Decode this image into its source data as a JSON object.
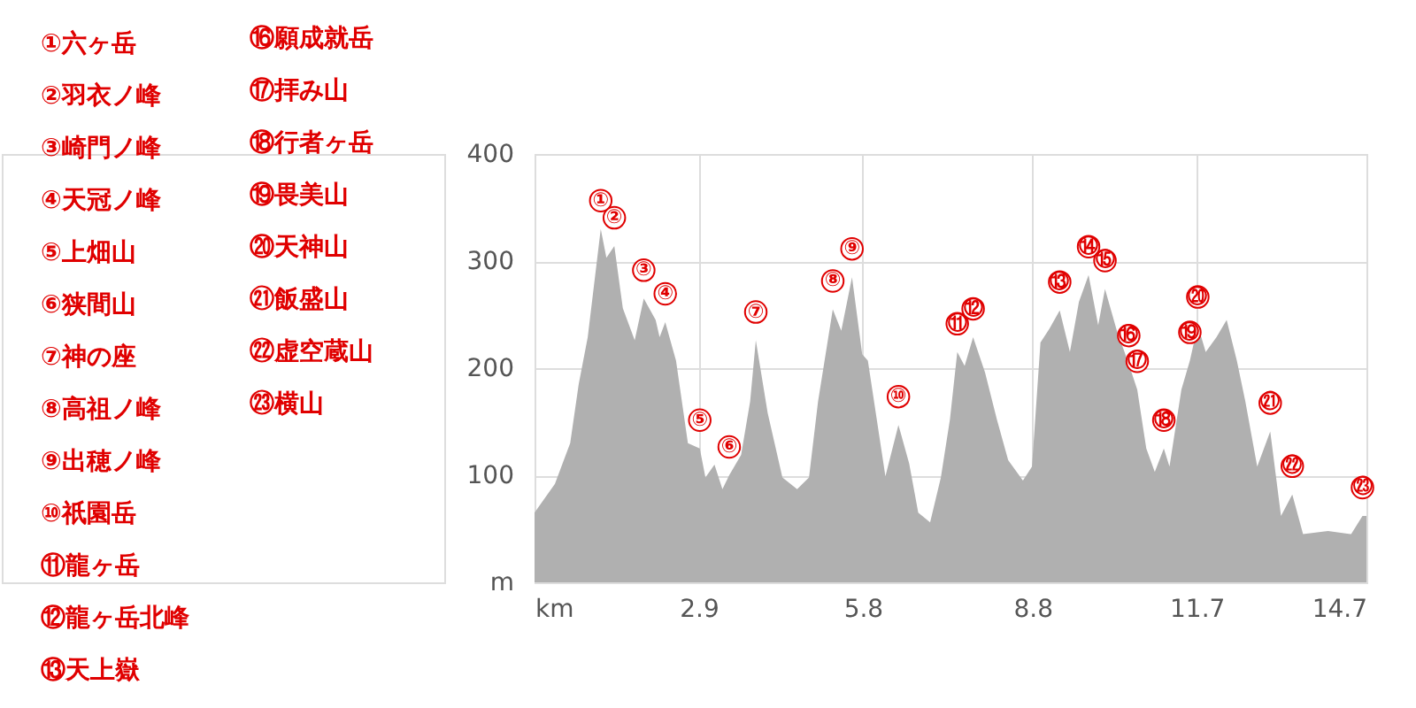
{
  "chart_data": {
    "type": "area",
    "x": [
      0,
      0.36,
      0.63,
      0.78,
      0.94,
      1.17,
      1.27,
      1.41,
      1.56,
      1.77,
      1.93,
      2.14,
      2.21,
      2.31,
      2.5,
      2.71,
      2.92,
      3.02,
      3.18,
      3.32,
      3.44,
      3.65,
      3.81,
      3.91,
      4.12,
      4.38,
      4.64,
      4.85,
      5.01,
      5.27,
      5.42,
      5.61,
      5.79,
      5.89,
      6.2,
      6.43,
      6.62,
      6.78,
      6.99,
      7.18,
      7.34,
      7.47,
      7.6,
      7.75,
      7.96,
      8.17,
      8.37,
      8.63,
      8.79,
      8.94,
      9.1,
      9.28,
      9.46,
      9.62,
      9.79,
      9.96,
      10.08,
      10.29,
      10.5,
      10.65,
      10.81,
      10.96,
      11.12,
      11.22,
      11.43,
      11.58,
      11.72,
      11.86,
      12.05,
      12.23,
      12.41,
      12.56,
      12.77,
      13.0,
      13.19,
      13.39,
      13.58,
      14.02,
      14.43,
      14.63,
      14.7
    ],
    "series": [
      {
        "color": "#b0b0b0",
        "values": [
          65,
          92,
          130,
          185,
          229,
          330,
          303,
          314,
          256,
          226,
          265,
          245,
          229,
          243,
          207,
          130,
          125,
          98,
          110,
          87,
          100,
          119,
          169,
          226,
          158,
          98,
          87,
          98,
          169,
          255,
          235,
          285,
          213,
          207,
          99,
          147,
          111,
          65,
          56,
          98,
          152,
          215,
          202,
          229,
          196,
          152,
          114,
          95,
          108,
          224,
          237,
          254,
          215,
          262,
          287,
          240,
          274,
          235,
          204,
          180,
          125,
          103,
          125,
          108,
          180,
          207,
          240,
          215,
          229,
          245,
          207,
          169,
          108,
          141,
          62,
          82,
          45,
          48,
          45,
          62,
          62
        ]
      }
    ],
    "xlim": [
      0,
      14.7
    ],
    "ylim": [
      0,
      400
    ],
    "xticks": [
      {
        "value": 0,
        "label": "km"
      },
      2.9,
      5.8,
      8.8,
      11.7,
      14.7
    ],
    "yticks": [
      {
        "value": 0,
        "label": "m"
      },
      100,
      200,
      300,
      400
    ],
    "grid": true,
    "annotations": [
      "①六ヶ岳",
      "②羽衣ノ峰",
      "③崎門ノ峰",
      "④天冠ノ峰",
      "⑤上畑山",
      "⑥狭間山",
      "⑦神の座",
      "⑧高祖ノ峰",
      "⑨出穂ノ峰",
      "⑩祇園岳",
      "⑪龍ヶ岳",
      "⑫龍ヶ岳北峰",
      "⑬天上嶽",
      "⑯願成就岳",
      "⑰拝み山",
      "⑱行者ヶ岳",
      "⑲畏美山",
      "⑳天神山",
      "㉑飯盛山",
      "㉒虚空蔵山",
      "㉓横山",
      {
        "text": "①",
        "x": 1.17,
        "y": 330
      },
      {
        "text": "②",
        "x": 1.41,
        "y": 314
      },
      {
        "text": "③",
        "x": 1.93,
        "y": 265
      },
      {
        "text": "④",
        "x": 2.31,
        "y": 243
      },
      {
        "text": "⑤",
        "x": 2.92,
        "y": 125
      },
      {
        "text": "⑥",
        "x": 3.44,
        "y": 100
      },
      {
        "text": "⑦",
        "x": 3.91,
        "y": 226
      },
      {
        "text": "⑧",
        "x": 5.27,
        "y": 255
      },
      {
        "text": "⑨",
        "x": 5.61,
        "y": 285
      },
      {
        "text": "⑩",
        "x": 6.43,
        "y": 147
      },
      {
        "text": "⑪",
        "x": 7.47,
        "y": 215
      },
      {
        "text": "⑫",
        "x": 7.75,
        "y": 229
      },
      {
        "text": "⑬",
        "x": 9.28,
        "y": 254
      },
      {
        "text": "⑭",
        "x": 9.79,
        "y": 287
      },
      {
        "text": "⑮",
        "x": 10.08,
        "y": 274
      },
      {
        "text": "⑯",
        "x": 10.5,
        "y": 204
      },
      {
        "text": "⑰",
        "x": 10.65,
        "y": 180
      },
      {
        "text": "⑱",
        "x": 11.12,
        "y": 125
      },
      {
        "text": "⑲",
        "x": 11.58,
        "y": 207
      },
      {
        "text": "⑳",
        "x": 11.72,
        "y": 240
      },
      {
        "text": "㉑",
        "x": 13.0,
        "y": 141
      },
      {
        "text": "㉒",
        "x": 13.39,
        "y": 82
      },
      {
        "text": "㉓",
        "x": 14.63,
        "y": 62
      }
    ]
  }
}
